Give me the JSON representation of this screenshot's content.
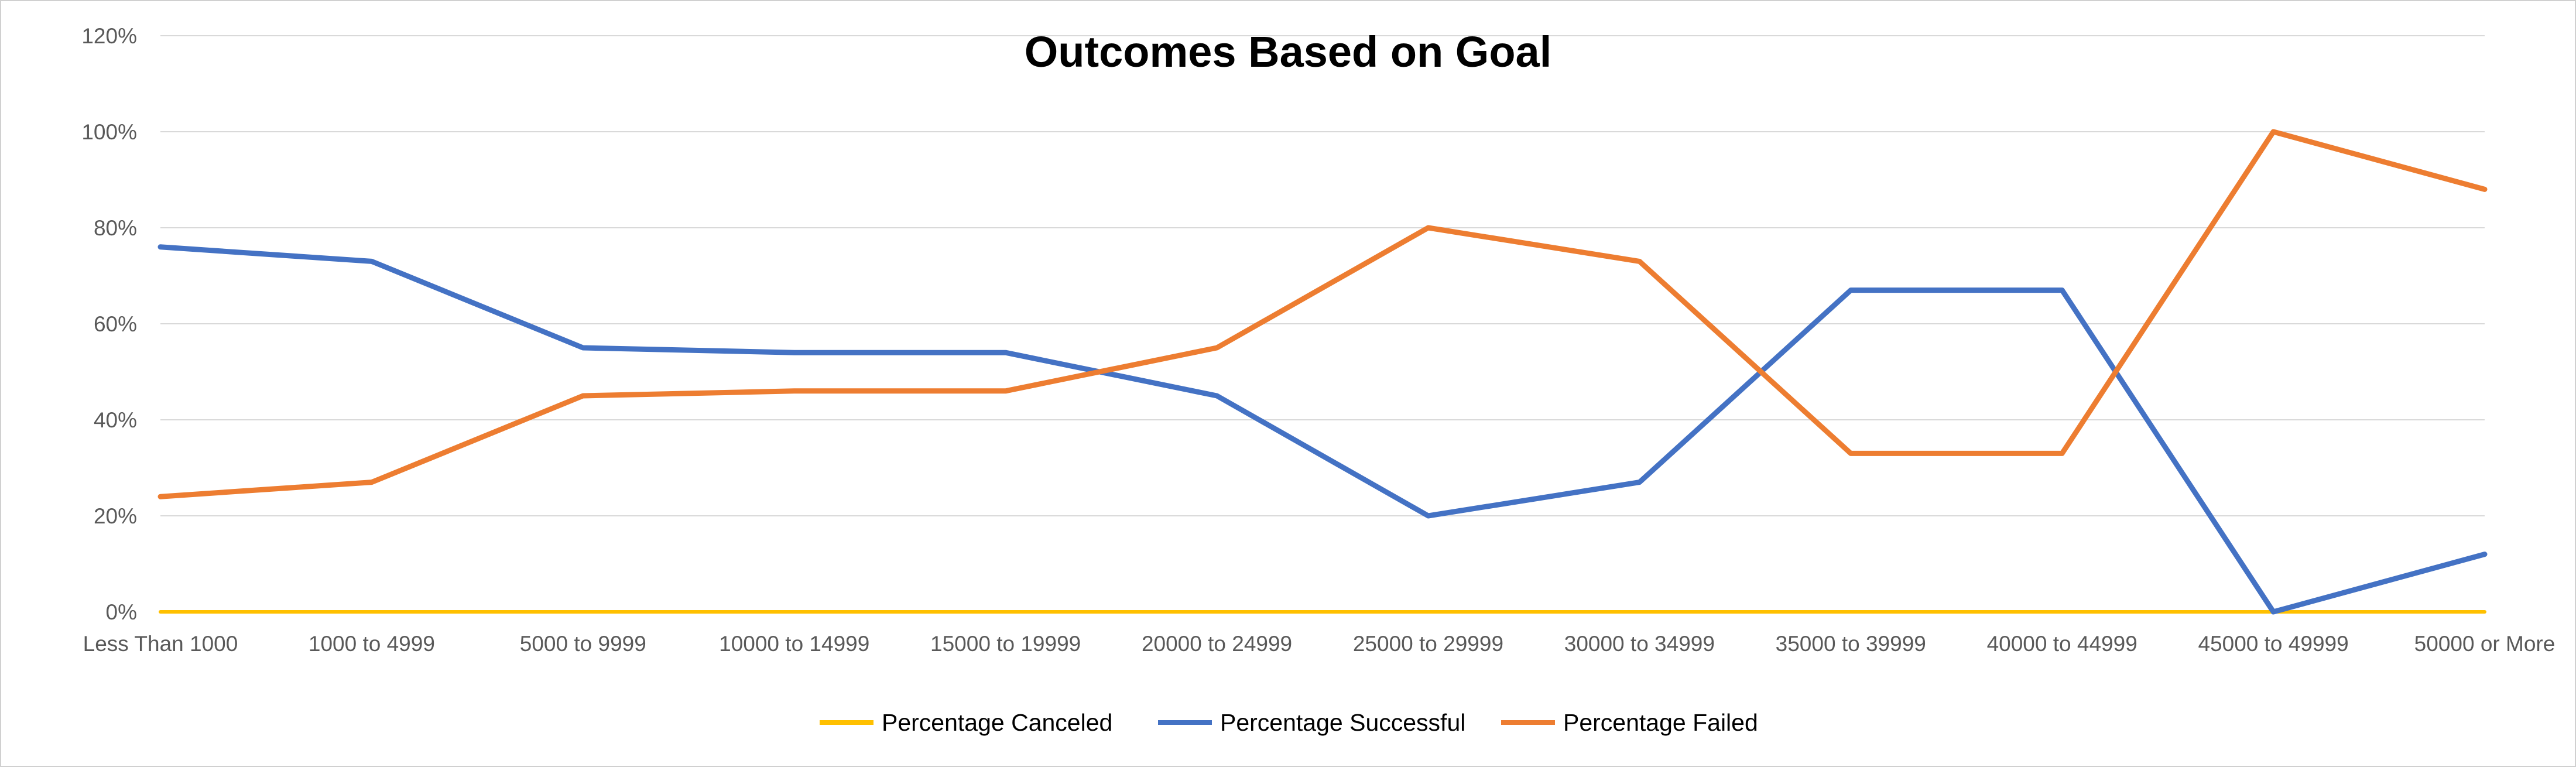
{
  "chart_data": {
    "type": "line",
    "title": "Outcomes Based on Goal",
    "xlabel": "",
    "ylabel": "",
    "categories": [
      "Less Than 1000",
      "1000 to 4999",
      "5000 to 9999",
      "10000 to 14999",
      "15000 to 19999",
      "20000 to 24999",
      "25000 to 29999",
      "30000 to 34999",
      "35000 to 39999",
      "40000 to 44999",
      "45000 to 49999",
      "50000 or More"
    ],
    "ylim": [
      0,
      1.2
    ],
    "y_ticks": [
      0,
      0.2,
      0.4,
      0.6,
      0.8,
      1.0,
      1.2
    ],
    "y_tick_labels": [
      "0%",
      "20%",
      "40%",
      "60%",
      "80%",
      "100%",
      "120%"
    ],
    "grid": true,
    "legend_position": "bottom",
    "series": [
      {
        "name": "Percentage Canceled",
        "color": "#FFC000",
        "values": [
          0,
          0,
          0,
          0,
          0,
          0,
          0,
          0,
          0,
          0,
          0,
          0
        ]
      },
      {
        "name": "Percentage Successful",
        "color": "#4472C4",
        "values": [
          0.76,
          0.73,
          0.55,
          0.54,
          0.54,
          0.45,
          0.2,
          0.27,
          0.67,
          0.67,
          0.0,
          0.12
        ]
      },
      {
        "name": "Percentage Failed",
        "color": "#ED7D31",
        "values": [
          0.24,
          0.27,
          0.45,
          0.46,
          0.46,
          0.55,
          0.8,
          0.73,
          0.33,
          0.33,
          1.0,
          0.88
        ]
      }
    ]
  }
}
